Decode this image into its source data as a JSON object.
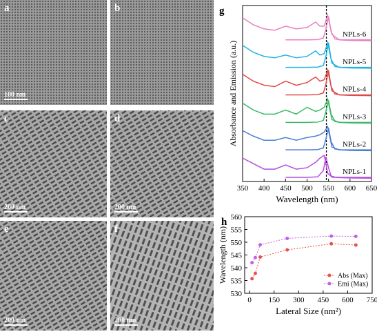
{
  "panels": [
    {
      "label": "a",
      "scale_bar": "100 nm"
    },
    {
      "label": "b"
    },
    {
      "label": "c",
      "scale_bar": "200 nm"
    },
    {
      "label": "d",
      "scale_bar": "200 nm"
    },
    {
      "label": "e",
      "scale_bar": "200 nm"
    },
    {
      "label": "f",
      "scale_bar": "200 nm"
    }
  ],
  "chart_data": [
    {
      "type": "line",
      "label": "g",
      "x_label": "Wavelength (nm)",
      "y_label": "Absorbance and Emission (a.u.)",
      "xlim": [
        350,
        650
      ],
      "xticks": [
        350,
        400,
        450,
        500,
        550,
        600,
        650
      ],
      "ylim": [
        -0.1,
        6.3
      ],
      "reference_line_x": 545,
      "series": [
        {
          "name": "NPLs-1",
          "color": "#b54ce0",
          "x": [
            350,
            375,
            400,
            425,
            450,
            475,
            500,
            520,
            530,
            540,
            548,
            558,
            575,
            600,
            650
          ],
          "values": [
            0.75,
            0.55,
            0.35,
            0.35,
            0.5,
            0.35,
            0.4,
            0.6,
            0.75,
            0.85,
            0.2,
            0.06,
            0.04,
            0.03,
            0.02
          ]
        },
        {
          "color": "#b54ce0",
          "x": [
            450,
            500,
            525,
            538,
            544,
            550,
            556,
            565,
            580,
            650
          ],
          "values": [
            0.05,
            0.05,
            0.07,
            0.3,
            0.8,
            0.4,
            0.1,
            0.06,
            0.05,
            0.05
          ]
        },
        {
          "name": "NPLs-2",
          "color": "#4a7fd6",
          "x": [
            350,
            375,
            400,
            425,
            450,
            475,
            500,
            520,
            530,
            540,
            548,
            558,
            575,
            600,
            650
          ],
          "values": [
            1.75,
            1.55,
            1.4,
            1.4,
            1.5,
            1.4,
            1.5,
            1.55,
            1.6,
            1.7,
            1.9,
            1.15,
            1.05,
            1.03,
            1.02
          ]
        },
        {
          "color": "#4a7fd6",
          "x": [
            450,
            500,
            525,
            538,
            544,
            550,
            556,
            565,
            580,
            650
          ],
          "values": [
            1.05,
            1.05,
            1.06,
            1.12,
            1.45,
            1.85,
            1.35,
            1.08,
            1.05,
            1.05
          ]
        },
        {
          "name": "NPLs-3",
          "color": "#3cb96a",
          "x": [
            350,
            375,
            400,
            425,
            450,
            475,
            500,
            520,
            530,
            540,
            548,
            558,
            575,
            600,
            650
          ],
          "values": [
            2.75,
            2.5,
            2.35,
            2.35,
            2.5,
            2.35,
            2.6,
            2.45,
            2.5,
            2.6,
            2.9,
            2.15,
            2.05,
            2.03,
            2.02
          ]
        },
        {
          "color": "#3cb96a",
          "x": [
            450,
            500,
            525,
            538,
            544,
            550,
            556,
            565,
            580,
            650
          ],
          "values": [
            2.05,
            2.05,
            2.06,
            2.12,
            2.45,
            2.85,
            2.35,
            2.08,
            2.05,
            2.05
          ]
        },
        {
          "name": "NPLs-4",
          "color": "#e04848",
          "x": [
            350,
            375,
            400,
            425,
            450,
            475,
            500,
            520,
            530,
            540,
            548,
            558,
            575,
            600,
            650
          ],
          "values": [
            3.8,
            3.55,
            3.4,
            3.35,
            3.55,
            3.4,
            3.5,
            3.7,
            3.55,
            3.6,
            3.95,
            3.2,
            3.05,
            3.03,
            3.02
          ]
        },
        {
          "color": "#e04848",
          "x": [
            450,
            500,
            525,
            538,
            544,
            550,
            556,
            565,
            580,
            650
          ],
          "values": [
            3.05,
            3.05,
            3.06,
            3.12,
            3.45,
            3.95,
            3.35,
            3.08,
            3.05,
            3.05
          ]
        },
        {
          "name": "NPLs-5",
          "color": "#1fb4e0",
          "x": [
            350,
            375,
            400,
            425,
            450,
            475,
            500,
            520,
            530,
            540,
            548,
            558,
            575,
            600,
            650
          ],
          "values": [
            4.85,
            4.6,
            4.45,
            4.4,
            4.5,
            4.4,
            4.45,
            4.65,
            4.5,
            4.55,
            4.95,
            4.2,
            4.05,
            4.03,
            4.02
          ]
        },
        {
          "color": "#1fb4e0",
          "x": [
            450,
            500,
            525,
            538,
            544,
            550,
            556,
            565,
            580,
            650
          ],
          "values": [
            4.05,
            4.05,
            4.06,
            4.12,
            4.45,
            4.95,
            4.35,
            4.08,
            4.05,
            4.05
          ]
        },
        {
          "name": "NPLs-6",
          "color": "#e880c0",
          "x": [
            350,
            375,
            400,
            425,
            450,
            475,
            500,
            520,
            530,
            540,
            548,
            558,
            575,
            600,
            650
          ],
          "values": [
            5.85,
            5.6,
            5.45,
            5.4,
            5.55,
            5.45,
            5.5,
            5.7,
            5.55,
            5.55,
            5.95,
            5.25,
            5.05,
            5.03,
            5.02
          ]
        },
        {
          "color": "#e880c0",
          "x": [
            450,
            500,
            525,
            538,
            544,
            550,
            556,
            565,
            580,
            650
          ],
          "values": [
            5.05,
            5.05,
            5.06,
            5.12,
            5.45,
            5.9,
            5.35,
            5.08,
            5.05,
            5.05
          ]
        }
      ]
    },
    {
      "type": "line",
      "label": "h",
      "x_label": "Lateral Size (nm²)",
      "y_label": "Wavelength (nm)",
      "x": [
        15,
        35,
        65,
        230,
        500,
        650
      ],
      "xlim": [
        -30,
        750
      ],
      "xticks": [
        0,
        150,
        300,
        450,
        600,
        750
      ],
      "ylim": [
        530,
        560
      ],
      "yticks": [
        530,
        535,
        540,
        545,
        550,
        555,
        560
      ],
      "legend": "lower right",
      "series": [
        {
          "name": "Abs (Max)",
          "color": "#e8504a",
          "values": [
            535.7,
            537.8,
            544.2,
            547,
            549.4,
            548.9
          ]
        },
        {
          "name": "Emi (Max)",
          "color": "#c060e8",
          "values": [
            542,
            544,
            549,
            551.5,
            552.4,
            552.3
          ]
        }
      ]
    }
  ]
}
